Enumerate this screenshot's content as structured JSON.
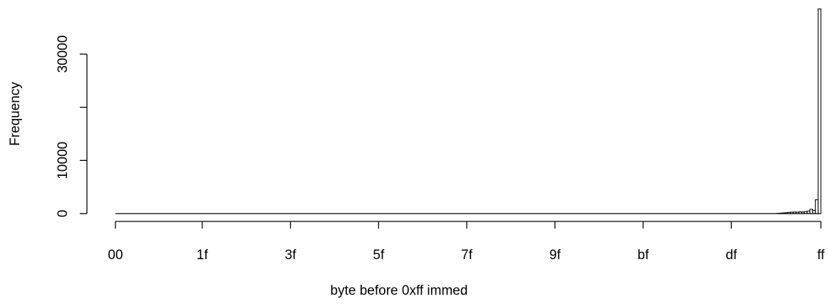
{
  "chart_data": {
    "type": "bar",
    "title": "",
    "xlabel": "byte before 0xff immed",
    "ylabel": "Frequency",
    "ylim": [
      0,
      40000
    ],
    "yticks": [
      0,
      10000,
      20000,
      30000
    ],
    "ytick_labels": [
      "0",
      "10000",
      "30000"
    ],
    "yticks_labeled": [
      0,
      10000,
      30000
    ],
    "xtick_labels": [
      "00",
      "1f",
      "3f",
      "5f",
      "7f",
      "9f",
      "bf",
      "df",
      "ff"
    ],
    "xtick_bins": [
      0,
      31,
      63,
      95,
      127,
      159,
      191,
      223,
      255
    ],
    "grid": false,
    "legend": "none",
    "nonzero_bins": [
      {
        "bin": 240,
        "value": 40
      },
      {
        "bin": 241,
        "value": 80
      },
      {
        "bin": 242,
        "value": 120
      },
      {
        "bin": 243,
        "value": 160
      },
      {
        "bin": 244,
        "value": 220
      },
      {
        "bin": 245,
        "value": 260
      },
      {
        "bin": 246,
        "value": 300
      },
      {
        "bin": 247,
        "value": 260
      },
      {
        "bin": 248,
        "value": 330
      },
      {
        "bin": 249,
        "value": 300
      },
      {
        "bin": 250,
        "value": 380
      },
      {
        "bin": 251,
        "value": 460
      },
      {
        "bin": 252,
        "value": 800
      },
      {
        "bin": 253,
        "value": 600
      },
      {
        "bin": 254,
        "value": 2600
      },
      {
        "bin": 255,
        "value": 38500
      }
    ]
  }
}
